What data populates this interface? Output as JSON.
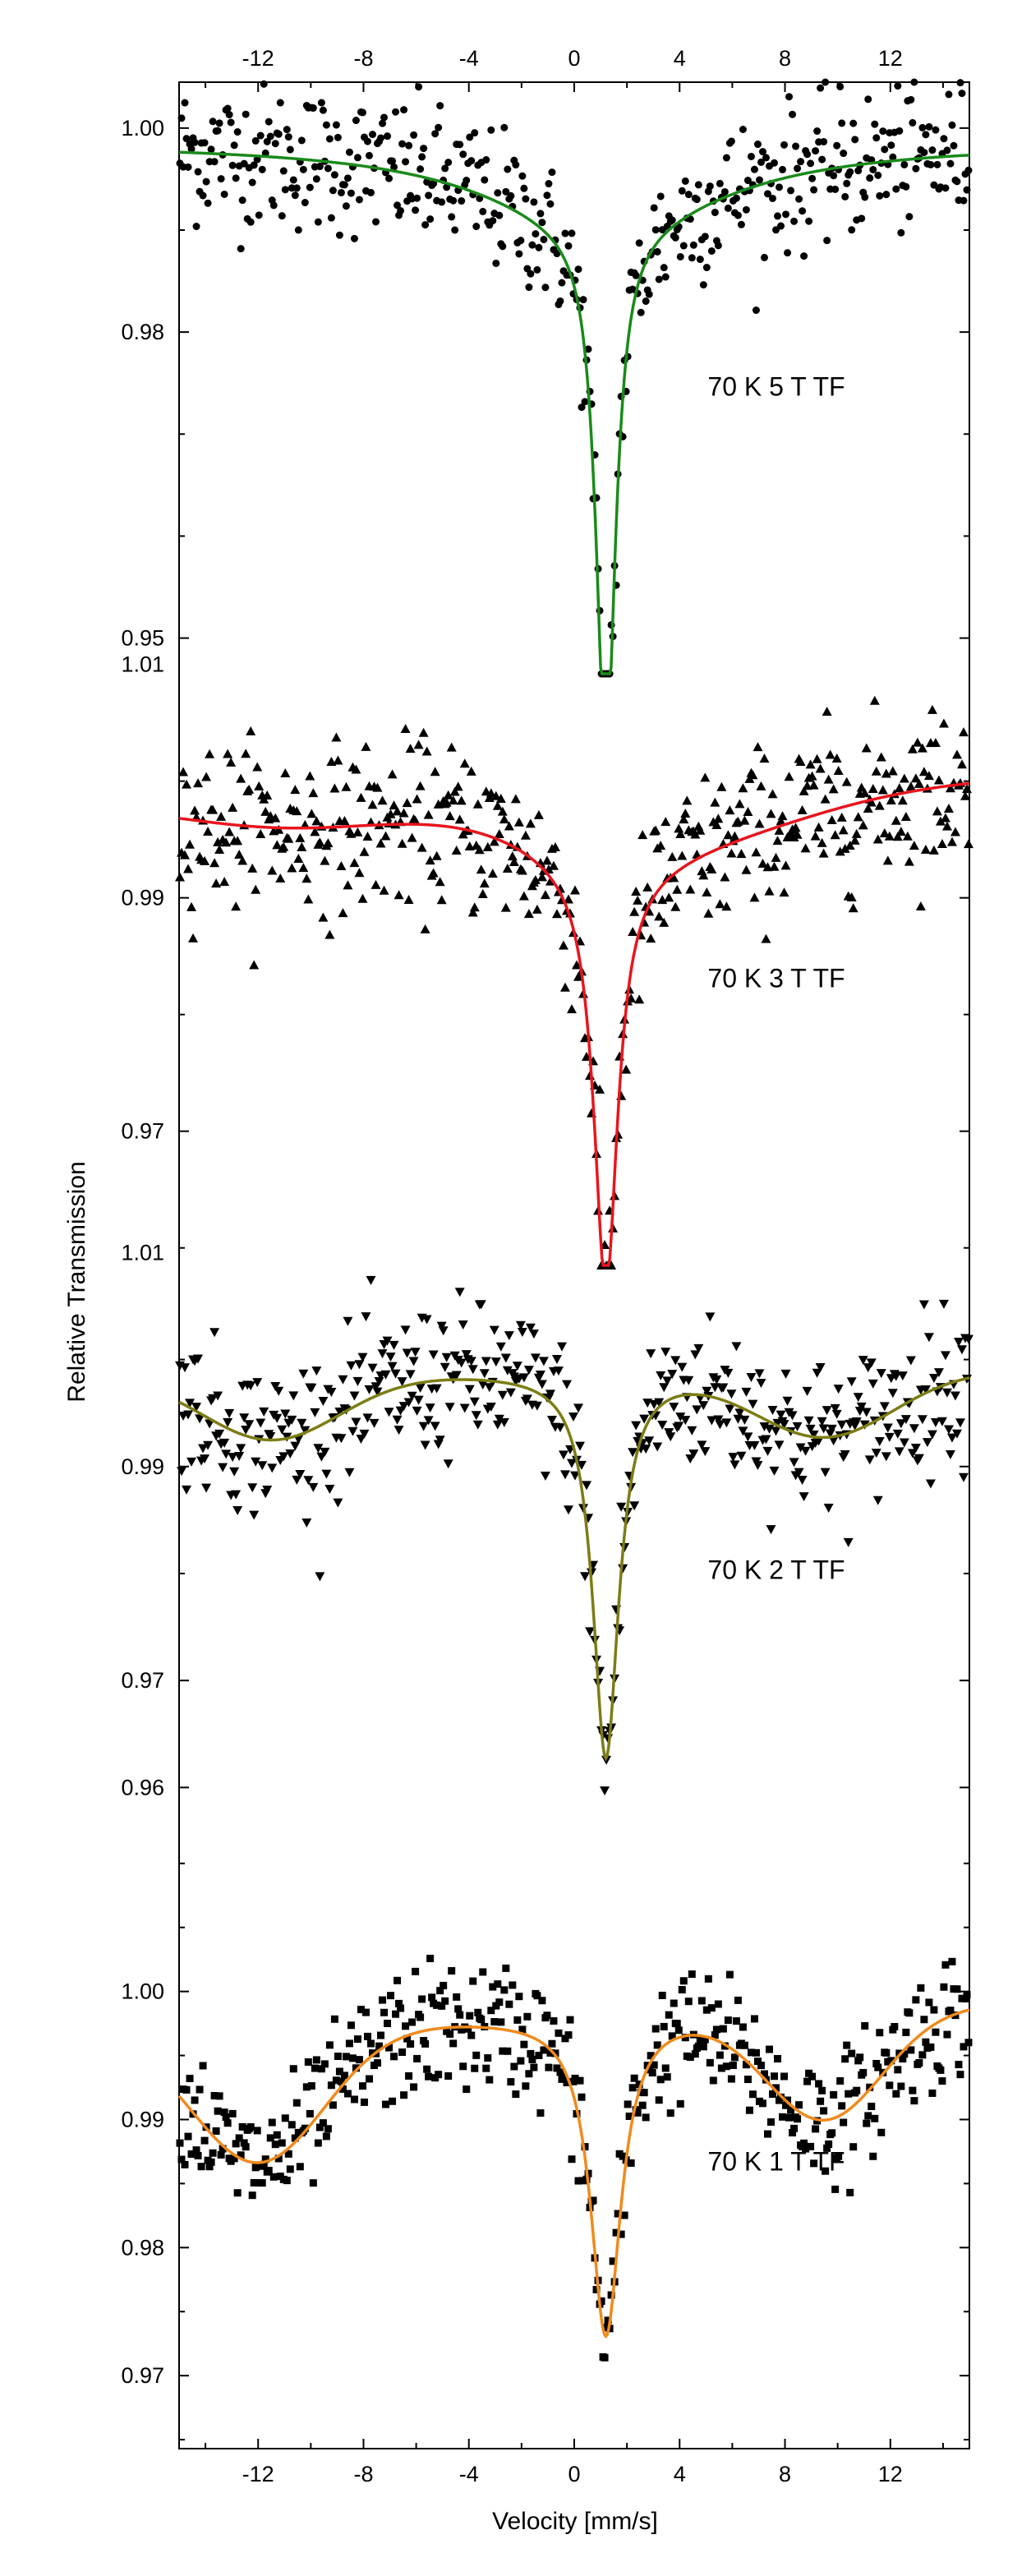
{
  "chart_data": {
    "type": "scatter",
    "ylabel": "Relative Transmission",
    "xlabel": "Velocity [mm/s]",
    "xlim": [
      -15,
      15
    ],
    "x_ticks": [
      -12,
      -8,
      -4,
      0,
      4,
      8,
      12
    ],
    "x_tick_labels": [
      "-12",
      "-8",
      "-4",
      "0",
      "4",
      "8",
      "12"
    ],
    "panels": [
      {
        "label": "70 K  5 T TF",
        "marker": "circle",
        "fit_color": "#1a8a1a",
        "ylim": [
          0.9465,
          1.0045
        ],
        "y_ticks": [
          1.0,
          0.98,
          0.95
        ],
        "y_tick_labels": [
          "1.00",
          "0.98",
          "0.95"
        ],
        "baseline_left": 0.9985,
        "baseline_right": 0.9985,
        "dip_center": 1.2,
        "dip_depth": 0.052,
        "dip_width": 0.45,
        "broad_dip": {
          "center": 1.2,
          "depth": 0.008,
          "width": 5.5
        },
        "side_dips": [],
        "noise": 0.0035
      },
      {
        "label": "70 K  3 T TF",
        "marker": "triangle-up",
        "fit_color": "#e8151d",
        "ylim": [
          0.9585,
          1.0092
        ],
        "y_ticks": [
          1.01,
          0.99,
          0.97
        ],
        "y_tick_labels": [
          "1.01",
          "0.99",
          "0.97"
        ],
        "baseline_left": 0.9985,
        "baseline_right": 1.0006,
        "dip_center": 1.2,
        "dip_depth": 0.036,
        "dip_width": 0.55,
        "broad_dip": {
          "center": 1.2,
          "depth": 0.006,
          "width": 4.5
        },
        "side_dips": [
          {
            "center": -11,
            "depth": 0.002,
            "width": 4.0
          },
          {
            "center": 6,
            "depth": 0.002,
            "width": 4.0
          }
        ],
        "noise": 0.0035
      },
      {
        "label": "70 K  2 T TF",
        "marker": "triangle-down",
        "fit_color": "#7c7c14",
        "ylim": [
          0.9535,
          1.0088
        ],
        "y_ticks": [
          1.01,
          0.99,
          0.97,
          0.96
        ],
        "y_tick_labels": [
          "1.01",
          "0.99",
          "0.97",
          "0.96"
        ],
        "baseline_left": 0.9985,
        "baseline_right": 0.999,
        "dip_center": 1.2,
        "dip_depth": 0.036,
        "dip_width": 0.6,
        "broad_dip": {
          "center": 1.2,
          "depth": 0.0,
          "width": 4.0
        },
        "side_dips": [
          {
            "center": -11.5,
            "depth": 0.006,
            "width": 2.6
          },
          {
            "center": 9.5,
            "depth": 0.006,
            "width": 2.6
          }
        ],
        "noise": 0.0035
      },
      {
        "label": "70 K  1 T TF",
        "marker": "square",
        "fit_color": "#f08a1c",
        "ylim": [
          0.9643,
          1.0105
        ],
        "y_ticks": [
          1.0,
          0.99,
          0.98,
          0.97
        ],
        "y_tick_labels": [
          "1.00",
          "0.99",
          "0.98",
          "0.97"
        ],
        "baseline_left": 0.997,
        "baseline_right": 0.999,
        "dip_center": 1.2,
        "dip_depth": 0.025,
        "dip_width": 0.7,
        "broad_dip": {
          "center": 1.2,
          "depth": 0.0,
          "width": 4.0
        },
        "side_dips": [
          {
            "center": -12,
            "depth": 0.0105,
            "width": 2.5
          },
          {
            "center": 9.5,
            "depth": 0.0085,
            "width": 2.2
          }
        ],
        "noise": 0.0025
      }
    ]
  }
}
